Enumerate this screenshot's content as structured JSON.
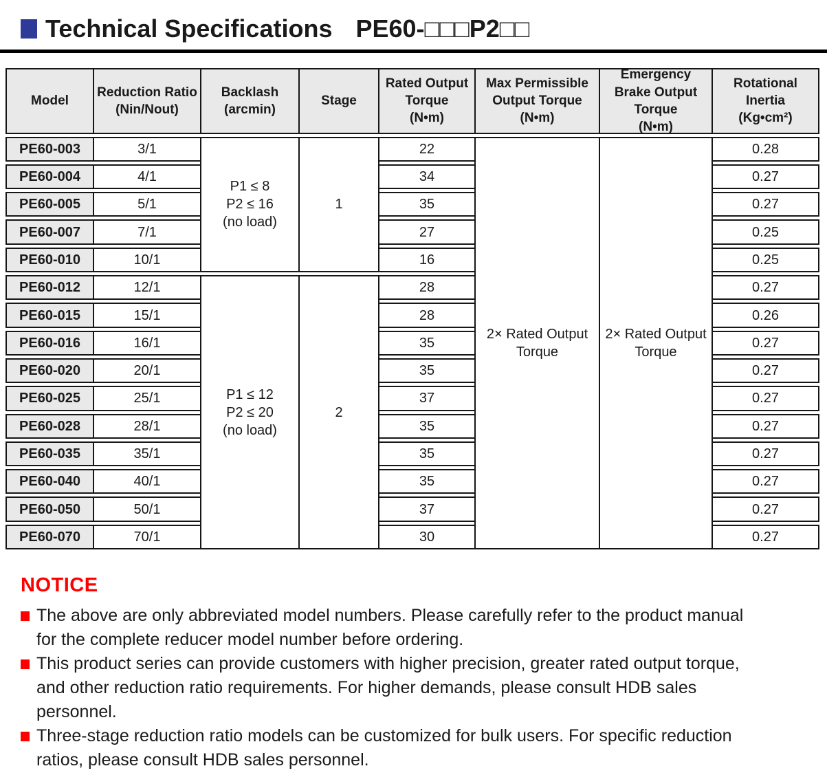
{
  "title": {
    "text": "Technical Specifications",
    "model_code": "PE60-□□□P2□□"
  },
  "table": {
    "headers": [
      "Model",
      "Reduction Ratio\n(Nin/Nout)",
      "Backlash\n(arcmin)",
      "Stage",
      "Rated Output\nTorque\n(N•m)",
      "Max Permissible\nOutput Torque\n(N•m)",
      "Emergency\nBrake Output\nTorque\n(N•m)",
      "Rotational\nInertia\n(Kg•cm²)"
    ],
    "groups": [
      {
        "backlash": "P1 ≤ 8\nP2 ≤ 16\n(no load)",
        "stage": "1",
        "rows": [
          {
            "model": "PE60-003",
            "ratio": "3/1",
            "torque": "22",
            "inertia": "0.28"
          },
          {
            "model": "PE60-004",
            "ratio": "4/1",
            "torque": "34",
            "inertia": "0.27"
          },
          {
            "model": "PE60-005",
            "ratio": "5/1",
            "torque": "35",
            "inertia": "0.27"
          },
          {
            "model": "PE60-007",
            "ratio": "7/1",
            "torque": "27",
            "inertia": "0.25"
          },
          {
            "model": "PE60-010",
            "ratio": "10/1",
            "torque": "16",
            "inertia": "0.25"
          }
        ]
      },
      {
        "backlash": "P1 ≤ 12\nP2 ≤ 20\n(no load)",
        "stage": "2",
        "rows": [
          {
            "model": "PE60-012",
            "ratio": "12/1",
            "torque": "28",
            "inertia": "0.27"
          },
          {
            "model": "PE60-015",
            "ratio": "15/1",
            "torque": "28",
            "inertia": "0.26"
          },
          {
            "model": "PE60-016",
            "ratio": "16/1",
            "torque": "35",
            "inertia": "0.27"
          },
          {
            "model": "PE60-020",
            "ratio": "20/1",
            "torque": "35",
            "inertia": "0.27"
          },
          {
            "model": "PE60-025",
            "ratio": "25/1",
            "torque": "37",
            "inertia": "0.27"
          },
          {
            "model": "PE60-028",
            "ratio": "28/1",
            "torque": "35",
            "inertia": "0.27"
          },
          {
            "model": "PE60-035",
            "ratio": "35/1",
            "torque": "35",
            "inertia": "0.27"
          },
          {
            "model": "PE60-040",
            "ratio": "40/1",
            "torque": "35",
            "inertia": "0.27"
          },
          {
            "model": "PE60-050",
            "ratio": "50/1",
            "torque": "37",
            "inertia": "0.27"
          },
          {
            "model": "PE60-070",
            "ratio": "70/1",
            "torque": "30",
            "inertia": "0.27"
          }
        ]
      }
    ],
    "max_permissible": "2× Rated Output\nTorque",
    "emergency_brake": "2× Rated Output\nTorque"
  },
  "notice": {
    "heading": "NOTICE",
    "items": [
      "The above are only abbreviated model numbers. Please carefully refer to the product manual for the complete reducer model number before ordering.",
      "This product series can provide customers with higher precision, greater rated output torque, and other reduction ratio requirements. For higher demands, please consult HDB sales personnel.",
      "Three-stage reduction ratio models can be customized for bulk users. For specific reduction ratios, please consult HDB sales personnel."
    ]
  },
  "colors": {
    "accent_blue": "#2e3a97",
    "notice_red": "#ff0000",
    "header_bg": "#e9e9e9",
    "border": "#161616"
  }
}
